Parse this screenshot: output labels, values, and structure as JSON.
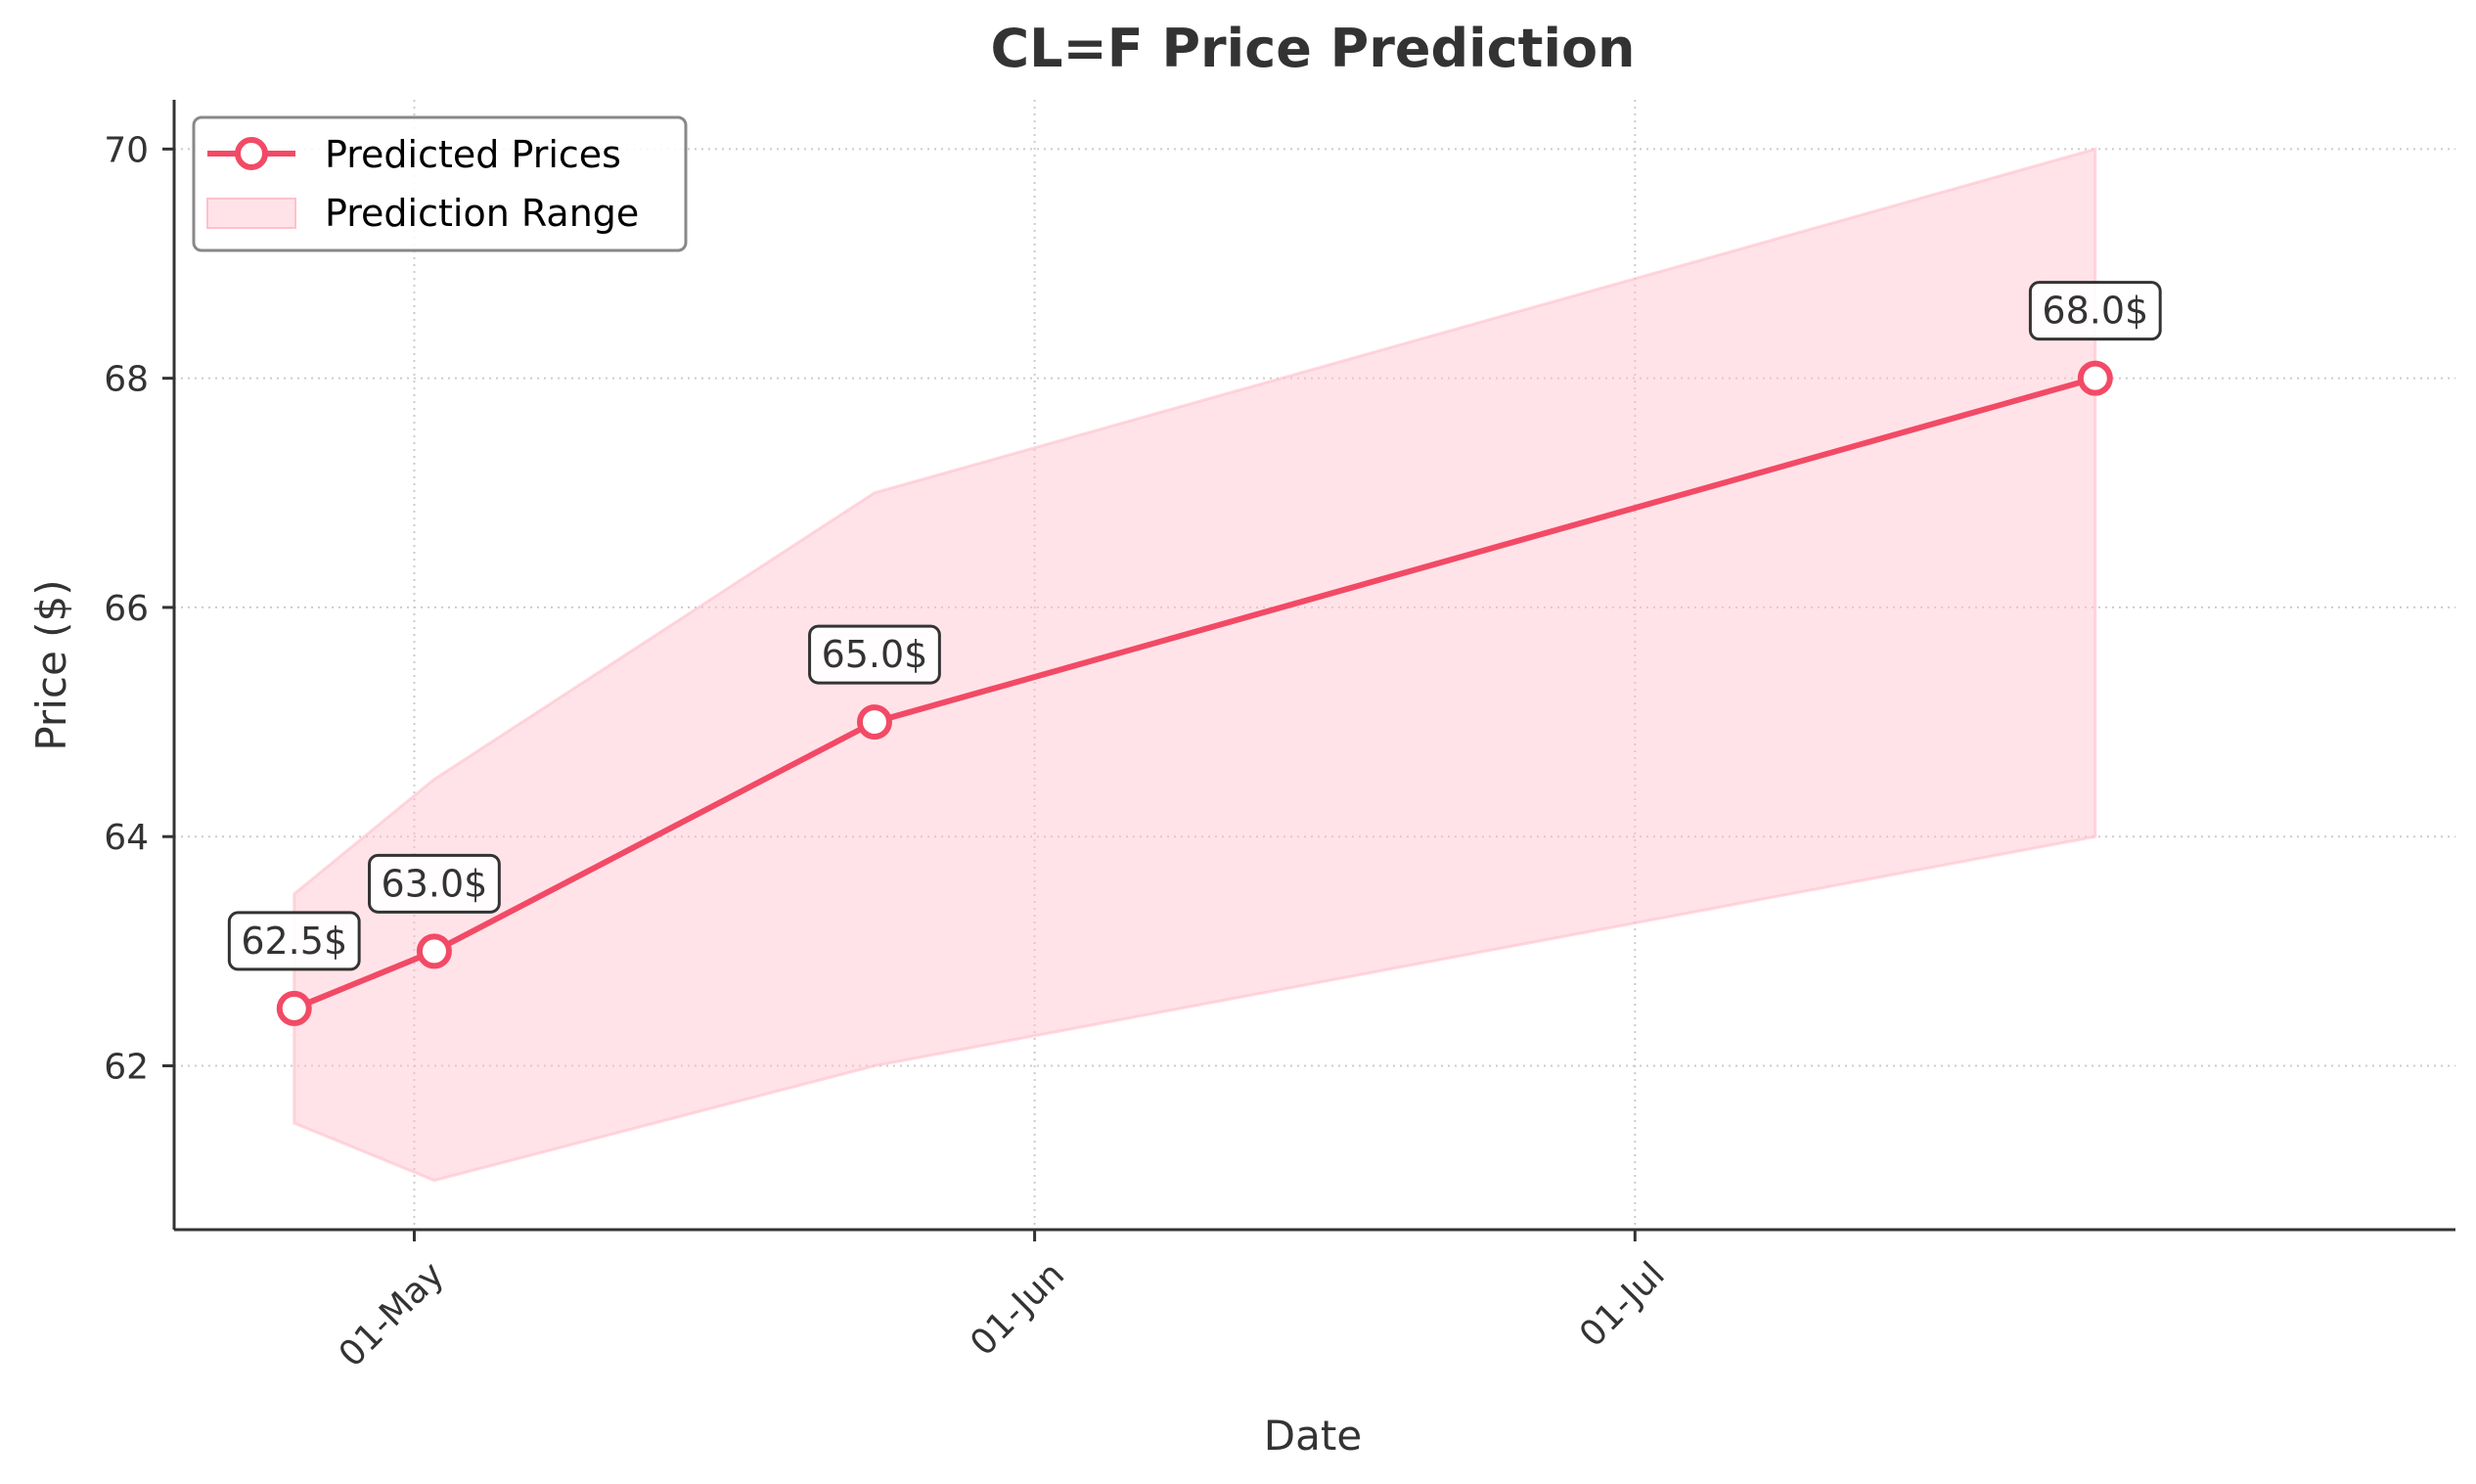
{
  "chart_data": {
    "type": "line",
    "title": "CL=F Price Prediction",
    "xlabel": "Date",
    "ylabel": "Price ($)",
    "x_ticks": [
      {
        "date": "2025-05-01",
        "label": "01-May"
      },
      {
        "date": "2025-06-01",
        "label": "01-Jun"
      },
      {
        "date": "2025-07-01",
        "label": "01-Jul"
      }
    ],
    "y_ticks": [
      62,
      64,
      66,
      68,
      70
    ],
    "xlim": [
      "2025-04-19",
      "2025-08-11"
    ],
    "ylim": [
      60.57,
      70.43
    ],
    "grid": true,
    "legend_position": "top-left",
    "series": [
      {
        "name": "Predicted Prices",
        "type": "line",
        "color": "#f24a66",
        "points": [
          {
            "x": "2025-04-25",
            "y": 62.5,
            "label": "62.5$"
          },
          {
            "x": "2025-05-02",
            "y": 63.0,
            "label": "63.0$"
          },
          {
            "x": "2025-05-24",
            "y": 65.0,
            "label": "65.0$"
          },
          {
            "x": "2025-07-24",
            "y": 68.0,
            "label": "68.0$"
          }
        ]
      },
      {
        "name": "Prediction Range",
        "type": "area",
        "color": "#ffc0cb",
        "bands": [
          {
            "x": "2025-04-25",
            "low": 61.5,
            "high": 63.5
          },
          {
            "x": "2025-05-02",
            "low": 61.0,
            "high": 64.5
          },
          {
            "x": "2025-05-24",
            "low": 62.0,
            "high": 67.0
          },
          {
            "x": "2025-07-24",
            "low": 64.0,
            "high": 70.0
          }
        ]
      }
    ]
  }
}
